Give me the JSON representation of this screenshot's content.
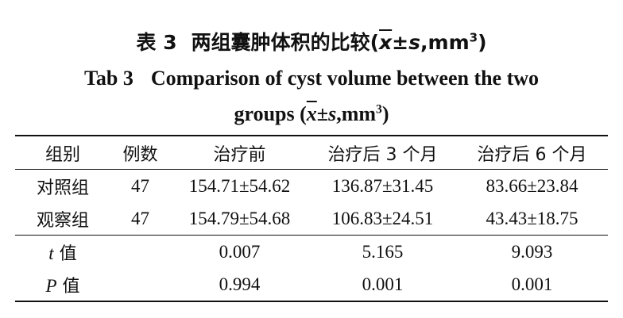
{
  "title_cn": {
    "label": "表 3",
    "text": "两组囊肿体积的比较(",
    "xbar": "x",
    "pm": "±",
    "s": "s",
    "unit": ",mm",
    "sup": "3",
    "close": ")"
  },
  "title_en": {
    "label": "Tab 3",
    "line1": "Comparison of cyst volume between the two",
    "line2_text": "groups (",
    "xbar": "x",
    "pm": "±",
    "s": "s",
    "unit": ",mm",
    "sup": "3",
    "close": ")"
  },
  "table": {
    "headers": [
      "组别",
      "例数",
      "治疗前",
      "治疗后 3 个月",
      "治疗后 6 个月"
    ],
    "rows": [
      {
        "group": "对照组",
        "n": "47",
        "pre": "154.71±54.62",
        "m3": "136.87±31.45",
        "m6": "83.66±23.84"
      },
      {
        "group": "观察组",
        "n": "47",
        "pre": "154.79±54.68",
        "m3": "106.83±24.51",
        "m6": "43.43±18.75"
      }
    ],
    "t_row": {
      "symbol": "t",
      "suffix": " 值",
      "pre": "0.007",
      "m3": "5.165",
      "m6": "9.093"
    },
    "p_row": {
      "symbol": "P",
      "suffix": " 值",
      "pre": "0.994",
      "m3": "0.001",
      "m6": "0.001"
    }
  }
}
